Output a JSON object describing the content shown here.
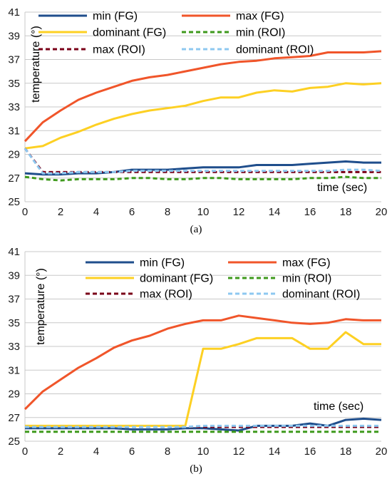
{
  "chart_data": [
    {
      "type": "line",
      "caption": "(a)",
      "xlabel": "time (sec)",
      "ylabel": "temperature (°)",
      "xlim": [
        0,
        20
      ],
      "ylim": [
        25,
        41
      ],
      "xticks": [
        0,
        2,
        4,
        6,
        8,
        10,
        12,
        14,
        16,
        18,
        20
      ],
      "yticks": [
        25,
        27,
        29,
        31,
        33,
        35,
        37,
        39,
        41
      ],
      "grid": "horizontal",
      "legend_position": "top",
      "x": [
        0,
        1,
        2,
        3,
        4,
        5,
        6,
        7,
        8,
        9,
        10,
        11,
        12,
        13,
        14,
        15,
        16,
        17,
        18,
        19,
        20
      ],
      "series": [
        {
          "name": "min (FG)",
          "color": "#1f4e8c",
          "style": "solid",
          "values": [
            27.4,
            27.3,
            27.3,
            27.4,
            27.4,
            27.5,
            27.7,
            27.7,
            27.7,
            27.8,
            27.9,
            27.9,
            27.9,
            28.1,
            28.1,
            28.1,
            28.2,
            28.3,
            28.4,
            28.3,
            28.3
          ]
        },
        {
          "name": "max (FG)",
          "color": "#f0552a",
          "style": "solid",
          "values": [
            30.1,
            31.7,
            32.7,
            33.6,
            34.2,
            34.7,
            35.2,
            35.5,
            35.7,
            36.0,
            36.3,
            36.6,
            36.8,
            36.9,
            37.1,
            37.2,
            37.3,
            37.6,
            37.6,
            37.6,
            37.7
          ]
        },
        {
          "name": "dominant (FG)",
          "color": "#fdd023",
          "style": "solid",
          "values": [
            29.5,
            29.7,
            30.4,
            30.9,
            31.5,
            32.0,
            32.4,
            32.7,
            32.9,
            33.1,
            33.5,
            33.8,
            33.8,
            34.2,
            34.4,
            34.3,
            34.6,
            34.7,
            35.0,
            34.9,
            35.0
          ]
        },
        {
          "name": "min (ROI)",
          "color": "#3f9a1d",
          "style": "dashed",
          "values": [
            27.1,
            26.9,
            26.8,
            26.9,
            26.9,
            26.9,
            27.0,
            27.0,
            26.9,
            26.9,
            27.0,
            27.0,
            26.9,
            26.9,
            26.9,
            26.9,
            27.0,
            27.0,
            27.1,
            27.0,
            27.0
          ]
        },
        {
          "name": "max (ROI)",
          "color": "#7a0018",
          "style": "dashed",
          "values": [
            29.5,
            27.5,
            27.5,
            27.5,
            27.5,
            27.5,
            27.5,
            27.5,
            27.5,
            27.5,
            27.5,
            27.5,
            27.5,
            27.5,
            27.5,
            27.5,
            27.5,
            27.5,
            27.5,
            27.5,
            27.5
          ]
        },
        {
          "name": "dominant (ROI)",
          "color": "#8ec8f0",
          "style": "dashed",
          "values": [
            29.5,
            27.4,
            27.4,
            27.5,
            27.5,
            27.5,
            27.6,
            27.6,
            27.6,
            27.6,
            27.6,
            27.6,
            27.6,
            27.6,
            27.6,
            27.6,
            27.6,
            27.6,
            27.7,
            27.7,
            27.6
          ]
        }
      ]
    },
    {
      "type": "line",
      "caption": "(b)",
      "xlabel": "time (sec)",
      "ylabel": "temperature (°)",
      "xlim": [
        0,
        20
      ],
      "ylim": [
        25,
        41
      ],
      "xticks": [
        0,
        2,
        4,
        6,
        8,
        10,
        12,
        14,
        16,
        18,
        20
      ],
      "yticks": [
        25,
        27,
        29,
        31,
        33,
        35,
        37,
        39,
        41
      ],
      "grid": "horizontal",
      "legend_position": "top",
      "x": [
        0,
        1,
        2,
        3,
        4,
        5,
        6,
        7,
        8,
        9,
        10,
        11,
        12,
        13,
        14,
        15,
        16,
        17,
        18,
        19,
        20
      ],
      "series": [
        {
          "name": "min (FG)",
          "color": "#1f4e8c",
          "style": "solid",
          "values": [
            26.1,
            26.1,
            26.1,
            26.1,
            26.1,
            26.1,
            26.0,
            26.0,
            26.0,
            26.1,
            26.1,
            26.0,
            25.9,
            26.3,
            26.3,
            26.3,
            26.5,
            26.3,
            26.8,
            26.9,
            26.8
          ]
        },
        {
          "name": "max (FG)",
          "color": "#f0552a",
          "style": "solid",
          "values": [
            27.7,
            29.2,
            30.2,
            31.2,
            32.0,
            32.9,
            33.5,
            33.9,
            34.5,
            34.9,
            35.2,
            35.2,
            35.6,
            35.4,
            35.2,
            35.0,
            34.9,
            35.0,
            35.3,
            35.2,
            35.2
          ]
        },
        {
          "name": "dominant (FG)",
          "color": "#fdd023",
          "style": "solid",
          "values": [
            26.3,
            26.3,
            26.3,
            26.3,
            26.3,
            26.3,
            26.3,
            26.3,
            26.3,
            26.3,
            32.8,
            32.8,
            33.2,
            33.7,
            33.7,
            33.7,
            32.8,
            32.8,
            34.2,
            33.2,
            33.2
          ]
        },
        {
          "name": "min (ROI)",
          "color": "#3f9a1d",
          "style": "dashed",
          "values": [
            25.8,
            25.8,
            25.8,
            25.8,
            25.8,
            25.8,
            25.8,
            25.8,
            25.8,
            25.8,
            25.8,
            25.8,
            25.8,
            25.8,
            25.8,
            25.8,
            25.8,
            25.8,
            25.8,
            25.8,
            25.8
          ]
        },
        {
          "name": "max (ROI)",
          "color": "#7a0018",
          "style": "dashed",
          "values": [
            26.2,
            26.2,
            26.2,
            26.2,
            26.2,
            26.2,
            26.2,
            26.2,
            26.2,
            26.2,
            26.2,
            26.2,
            26.2,
            26.2,
            26.2,
            26.2,
            26.2,
            26.2,
            26.2,
            26.2,
            26.2
          ]
        },
        {
          "name": "dominant (ROI)",
          "color": "#8ec8f0",
          "style": "dashed",
          "values": [
            26.2,
            26.2,
            26.2,
            26.2,
            26.2,
            26.2,
            26.2,
            26.2,
            26.2,
            26.2,
            26.3,
            26.3,
            26.3,
            26.3,
            26.3,
            26.3,
            26.3,
            26.3,
            26.3,
            26.3,
            26.3
          ]
        }
      ]
    }
  ]
}
